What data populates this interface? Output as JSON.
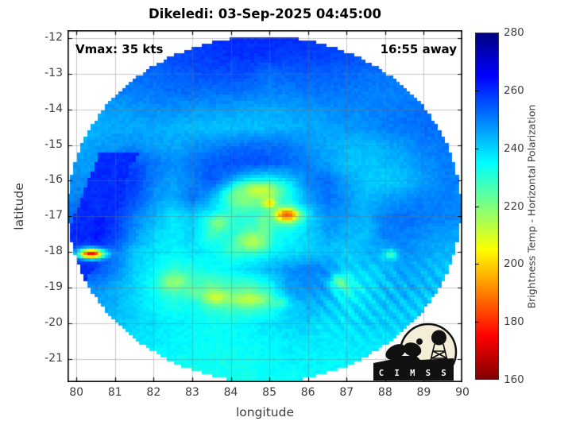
{
  "chart_data": {
    "type": "heatmap",
    "title": "Dikeledi: 03-Sep-2025 04:45:00",
    "xlabel": "longitude",
    "ylabel": "latitude",
    "xlim": [
      79.77,
      90.0
    ],
    "ylim": [
      -21.65,
      -11.78
    ],
    "x_ticks": [
      80,
      81,
      82,
      83,
      84,
      85,
      86,
      87,
      88,
      89,
      90
    ],
    "y_ticks": [
      -12,
      -13,
      -14,
      -15,
      -16,
      -17,
      -18,
      -19,
      -20,
      -21
    ],
    "grid": true,
    "annotations": {
      "vmax": "Vmax: 35 kts",
      "time_away": "16:55 away"
    },
    "colorbar": {
      "label": "Brightness Temp - Horizontal Polarization",
      "min": 160,
      "max": 280,
      "ticks": [
        160,
        180,
        200,
        220,
        240,
        260,
        280
      ],
      "colormap": "jet-reversed"
    },
    "field": {
      "units": "K",
      "disk": {
        "center_lon": 84.87,
        "center_lat": -16.79,
        "radius_lon": 5.1,
        "radius_lat": 4.85
      },
      "grid_lon0": 79.5,
      "grid_dlon": 0.5,
      "grid_lat0": -11.5,
      "grid_dlat": -0.5,
      "values": [
        [
          259,
          259,
          259,
          259,
          259,
          259,
          259,
          259,
          259,
          259,
          259,
          259,
          259,
          259,
          259,
          259,
          259,
          259,
          259,
          259,
          259,
          259,
          259
        ],
        [
          254,
          254,
          255,
          255,
          256,
          256,
          257,
          258,
          259,
          260,
          260,
          260,
          260,
          259,
          258,
          258,
          257,
          256,
          255,
          254,
          254,
          253,
          253
        ],
        [
          252,
          252,
          253,
          253,
          254,
          255,
          256,
          257,
          258,
          259,
          259,
          259,
          258,
          258,
          257,
          256,
          256,
          255,
          254,
          253,
          252,
          252,
          252
        ],
        [
          249,
          249,
          250,
          251,
          252,
          253,
          254,
          255,
          256,
          256,
          256,
          252,
          254,
          254,
          254,
          253,
          252,
          251,
          251,
          250,
          250,
          250,
          250
        ],
        [
          247,
          247,
          248,
          249,
          250,
          251,
          252,
          252,
          252,
          252,
          251,
          250,
          250,
          251,
          251,
          251,
          250,
          250,
          250,
          251,
          251,
          251,
          250
        ],
        [
          245,
          245,
          246,
          246,
          247,
          248,
          248,
          247,
          247,
          246,
          245,
          245,
          246,
          247,
          248,
          249,
          249,
          250,
          251,
          252,
          252,
          251,
          250
        ],
        [
          244,
          244,
          244,
          245,
          245,
          245,
          244,
          243,
          242,
          242,
          242,
          243,
          244,
          245,
          246,
          247,
          248,
          250,
          251,
          252,
          252,
          251,
          250
        ],
        [
          245,
          245,
          246,
          247,
          248,
          246,
          245,
          247,
          249,
          251,
          252,
          252,
          251,
          248,
          245,
          243,
          243,
          245,
          247,
          250,
          251,
          250,
          249
        ],
        [
          246,
          246,
          247,
          250,
          256,
          251,
          248,
          251,
          254,
          256,
          256,
          255,
          253,
          250,
          246,
          242,
          242,
          243,
          245,
          248,
          250,
          250,
          249
        ],
        [
          247,
          248,
          249,
          256,
          259,
          250,
          246,
          250,
          255,
          248,
          238,
          236,
          240,
          250,
          252,
          246,
          241,
          240,
          242,
          246,
          250,
          250,
          248
        ],
        [
          248,
          250,
          252,
          261,
          256,
          248,
          244,
          252,
          244,
          232,
          228,
          230,
          234,
          246,
          252,
          248,
          243,
          246,
          248,
          250,
          250,
          249,
          248
        ],
        [
          250,
          253,
          262,
          259,
          250,
          244,
          238,
          240,
          236,
          230,
          232,
          230,
          222,
          238,
          248,
          246,
          244,
          250,
          252,
          251,
          250,
          249,
          248
        ],
        [
          250,
          255,
          263,
          258,
          248,
          240,
          237,
          240,
          228,
          234,
          227,
          232,
          235,
          240,
          246,
          244,
          242,
          250,
          250,
          248,
          246,
          246,
          245
        ],
        [
          252,
          258,
          260,
          252,
          242,
          238,
          236,
          238,
          236,
          230,
          233,
          236,
          238,
          240,
          242,
          240,
          244,
          246,
          248,
          246,
          244,
          244,
          243
        ],
        [
          250,
          254,
          256,
          250,
          240,
          236,
          230,
          232,
          234,
          236,
          240,
          244,
          248,
          250,
          248,
          240,
          240,
          242,
          246,
          244,
          242,
          242,
          242
        ],
        [
          246,
          248,
          248,
          244,
          240,
          234,
          226,
          228,
          222,
          226,
          224,
          232,
          246,
          248,
          246,
          230,
          238,
          242,
          244,
          243,
          242,
          241,
          240
        ],
        [
          244,
          246,
          246,
          244,
          240,
          236,
          232,
          234,
          228,
          226,
          225,
          230,
          240,
          244,
          242,
          238,
          240,
          242,
          242,
          241,
          240,
          239,
          238
        ],
        [
          242,
          243,
          243,
          242,
          240,
          238,
          236,
          236,
          234,
          234,
          236,
          238,
          240,
          240,
          238,
          238,
          240,
          240,
          240,
          239,
          238,
          237,
          236
        ],
        [
          240,
          240,
          240,
          239,
          238,
          237,
          236,
          235,
          234,
          234,
          235,
          236,
          237,
          238,
          237,
          237,
          238,
          238,
          238,
          237,
          236,
          236,
          235
        ],
        [
          238,
          238,
          238,
          237,
          236,
          236,
          235,
          234,
          234,
          233,
          234,
          235,
          236,
          236,
          236,
          236,
          236,
          236,
          236,
          236,
          235,
          235,
          234
        ],
        [
          236,
          236,
          236,
          235,
          235,
          234,
          234,
          233,
          233,
          233,
          233,
          234,
          234,
          235,
          235,
          235,
          235,
          235,
          235,
          234,
          234,
          234,
          233
        ],
        [
          235,
          235,
          235,
          234,
          234,
          234,
          233,
          233,
          233,
          233,
          233,
          233,
          234,
          234,
          234,
          234,
          234,
          234,
          234,
          233,
          233,
          233,
          233
        ]
      ],
      "hotspots": [
        {
          "lon": 85.45,
          "lat": -16.95,
          "temp": 185,
          "slon": 0.22,
          "slat": 0.13
        },
        {
          "lon": 84.75,
          "lat": -16.3,
          "temp": 210,
          "slon": 0.4,
          "slat": 0.17
        },
        {
          "lon": 84.35,
          "lat": -16.5,
          "temp": 220,
          "slon": 0.3,
          "slat": 0.22
        },
        {
          "lon": 85.0,
          "lat": -16.62,
          "temp": 202,
          "slon": 0.13,
          "slat": 0.1
        },
        {
          "lon": 84.85,
          "lat": -17.25,
          "temp": 222,
          "slon": 0.12,
          "slat": 0.28
        },
        {
          "lon": 83.68,
          "lat": -17.18,
          "temp": 220,
          "slon": 0.2,
          "slat": 0.16
        },
        {
          "lon": 84.55,
          "lat": -17.72,
          "temp": 214,
          "slon": 0.28,
          "slat": 0.2
        },
        {
          "lon": 80.38,
          "lat": -18.05,
          "temp": 176,
          "slon": 0.24,
          "slat": 0.1
        },
        {
          "lon": 82.55,
          "lat": -18.82,
          "temp": 218,
          "slon": 0.24,
          "slat": 0.16
        },
        {
          "lon": 83.05,
          "lat": -19.12,
          "temp": 224,
          "slon": 0.14,
          "slat": 0.11
        },
        {
          "lon": 83.62,
          "lat": -19.27,
          "temp": 210,
          "slon": 0.22,
          "slat": 0.13
        },
        {
          "lon": 84.5,
          "lat": -19.32,
          "temp": 212,
          "slon": 0.34,
          "slat": 0.12
        },
        {
          "lon": 85.25,
          "lat": -19.42,
          "temp": 228,
          "slon": 0.16,
          "slat": 0.1
        },
        {
          "lon": 86.82,
          "lat": -18.85,
          "temp": 222,
          "slon": 0.16,
          "slat": 0.13
        },
        {
          "lon": 88.12,
          "lat": -18.08,
          "temp": 228,
          "slon": 0.13,
          "slat": 0.1
        }
      ],
      "swath_wedge": {
        "temp": 260,
        "lat_top": -15.2,
        "lat_bottom": -18.9,
        "lon_at_top": 81.55,
        "slope_lon_per_lat": 0.36,
        "width_lon": 0.95
      }
    },
    "logo_text": "C I M S S"
  },
  "colors": {
    "background": "#ffffff",
    "frame": "#000000",
    "tick_text": "#3d3d3d",
    "grid_line": "rgba(115,115,115,0.4)",
    "logo_circle": "#f4eed8",
    "logo_silhouette": "#111111"
  }
}
